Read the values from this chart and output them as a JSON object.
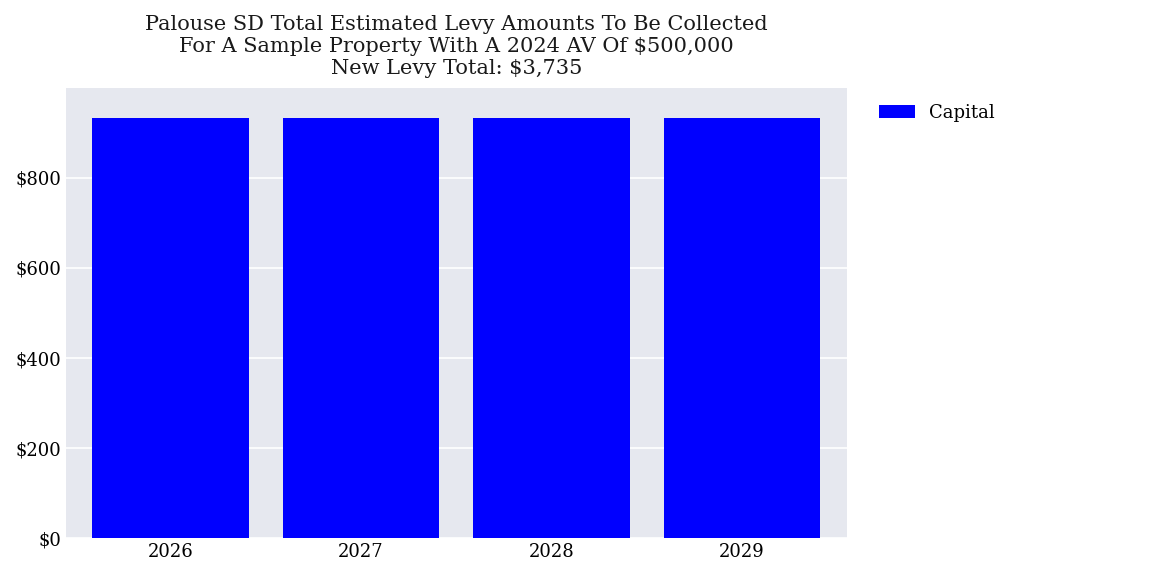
{
  "title_line1": "Palouse SD Total Estimated Levy Amounts To Be Collected",
  "title_line2": "For A Sample Property With A 2024 AV Of $500,000",
  "title_line3": "New Levy Total: $3,735",
  "years": [
    2026,
    2027,
    2028,
    2029
  ],
  "values": [
    933.75,
    933.75,
    933.75,
    933.75
  ],
  "bar_color": "#0000FF",
  "legend_label": "Capital",
  "plot_bg_color": "#E6E8EF",
  "fig_bg_color": "#FFFFFF",
  "ylim": [
    0,
    1000
  ],
  "yticks": [
    0,
    200,
    400,
    600,
    800
  ],
  "title_fontsize": 15,
  "tick_fontsize": 13,
  "legend_fontsize": 13,
  "bar_width": 0.82
}
